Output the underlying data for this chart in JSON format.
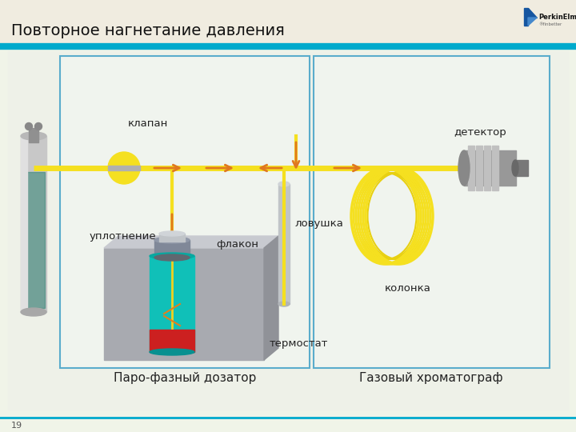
{
  "title": "Повторное нагнетание давления",
  "bg_color": "#f0f4e8",
  "slide_bg": "#f0f4e8",
  "content_bg": "#f5f7f2",
  "box_fill": "#f8faf5",
  "label_klapan": "клапан",
  "label_uplot": "уплотнение",
  "label_flakon": "флакон",
  "label_lovushka": "ловушка",
  "label_termostat": "термостат",
  "label_detektor": "детектор",
  "label_kolonka": "колонка",
  "label_left_box": "Паро-фазный дозатор",
  "label_right_box": "Газовый хроматограф",
  "page_number": "19",
  "line_color": "#f5e020",
  "arrow_color": "#e07820",
  "box_border_color": "#5aaccc",
  "header_line_color": "#00aacc",
  "title_color": "#111111",
  "text_color": "#222222"
}
